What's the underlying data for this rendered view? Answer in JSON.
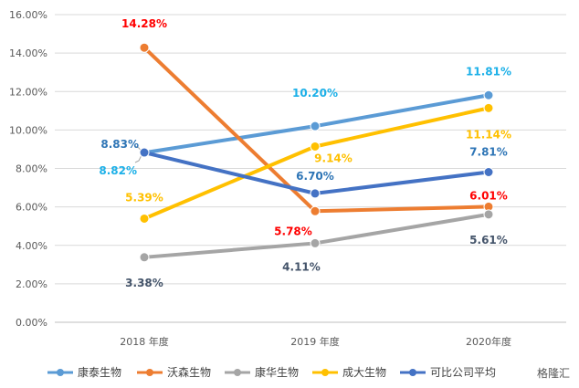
{
  "chart_data": {
    "type": "line",
    "categories": [
      "2018 年度",
      "2019 年度",
      "2020年度"
    ],
    "y_tick_labels": [
      "0.00%",
      "2.00%",
      "4.00%",
      "6.00%",
      "8.00%",
      "10.00%",
      "12.00%",
      "14.00%",
      "16.00%"
    ],
    "ylim": [
      0,
      16
    ],
    "grid": true,
    "legend_position": "bottom",
    "series": [
      {
        "name": "康泰生物",
        "color": "#5B9BD5",
        "label_color": "#1CB0E8",
        "values": [
          8.82,
          10.2,
          11.81
        ],
        "labels": [
          "8.82%",
          "10.20%",
          "11.81%"
        ]
      },
      {
        "name": "沃森生物",
        "color": "#ED7D31",
        "label_color": "#FF0000",
        "values": [
          14.28,
          5.78,
          6.01
        ],
        "labels": [
          "14.28%",
          "5.78%",
          "6.01%"
        ]
      },
      {
        "name": "康华生物",
        "color": "#A5A5A5",
        "label_color": "#44546A",
        "values": [
          3.38,
          4.11,
          5.61
        ],
        "labels": [
          "3.38%",
          "4.11%",
          "5.61%"
        ]
      },
      {
        "name": "成大生物",
        "color": "#FFC000",
        "label_color": "#FFC000",
        "values": [
          5.39,
          9.14,
          11.14
        ],
        "labels": [
          "5.39%",
          "9.14%",
          "11.14%"
        ]
      },
      {
        "name": "可比公司平均",
        "color": "#4472C4",
        "label_color": "#2E75B6",
        "values": [
          8.83,
          6.7,
          7.81
        ],
        "labels": [
          "8.83%",
          "6.70%",
          "7.81%"
        ]
      }
    ]
  },
  "watermark": "格隆汇"
}
